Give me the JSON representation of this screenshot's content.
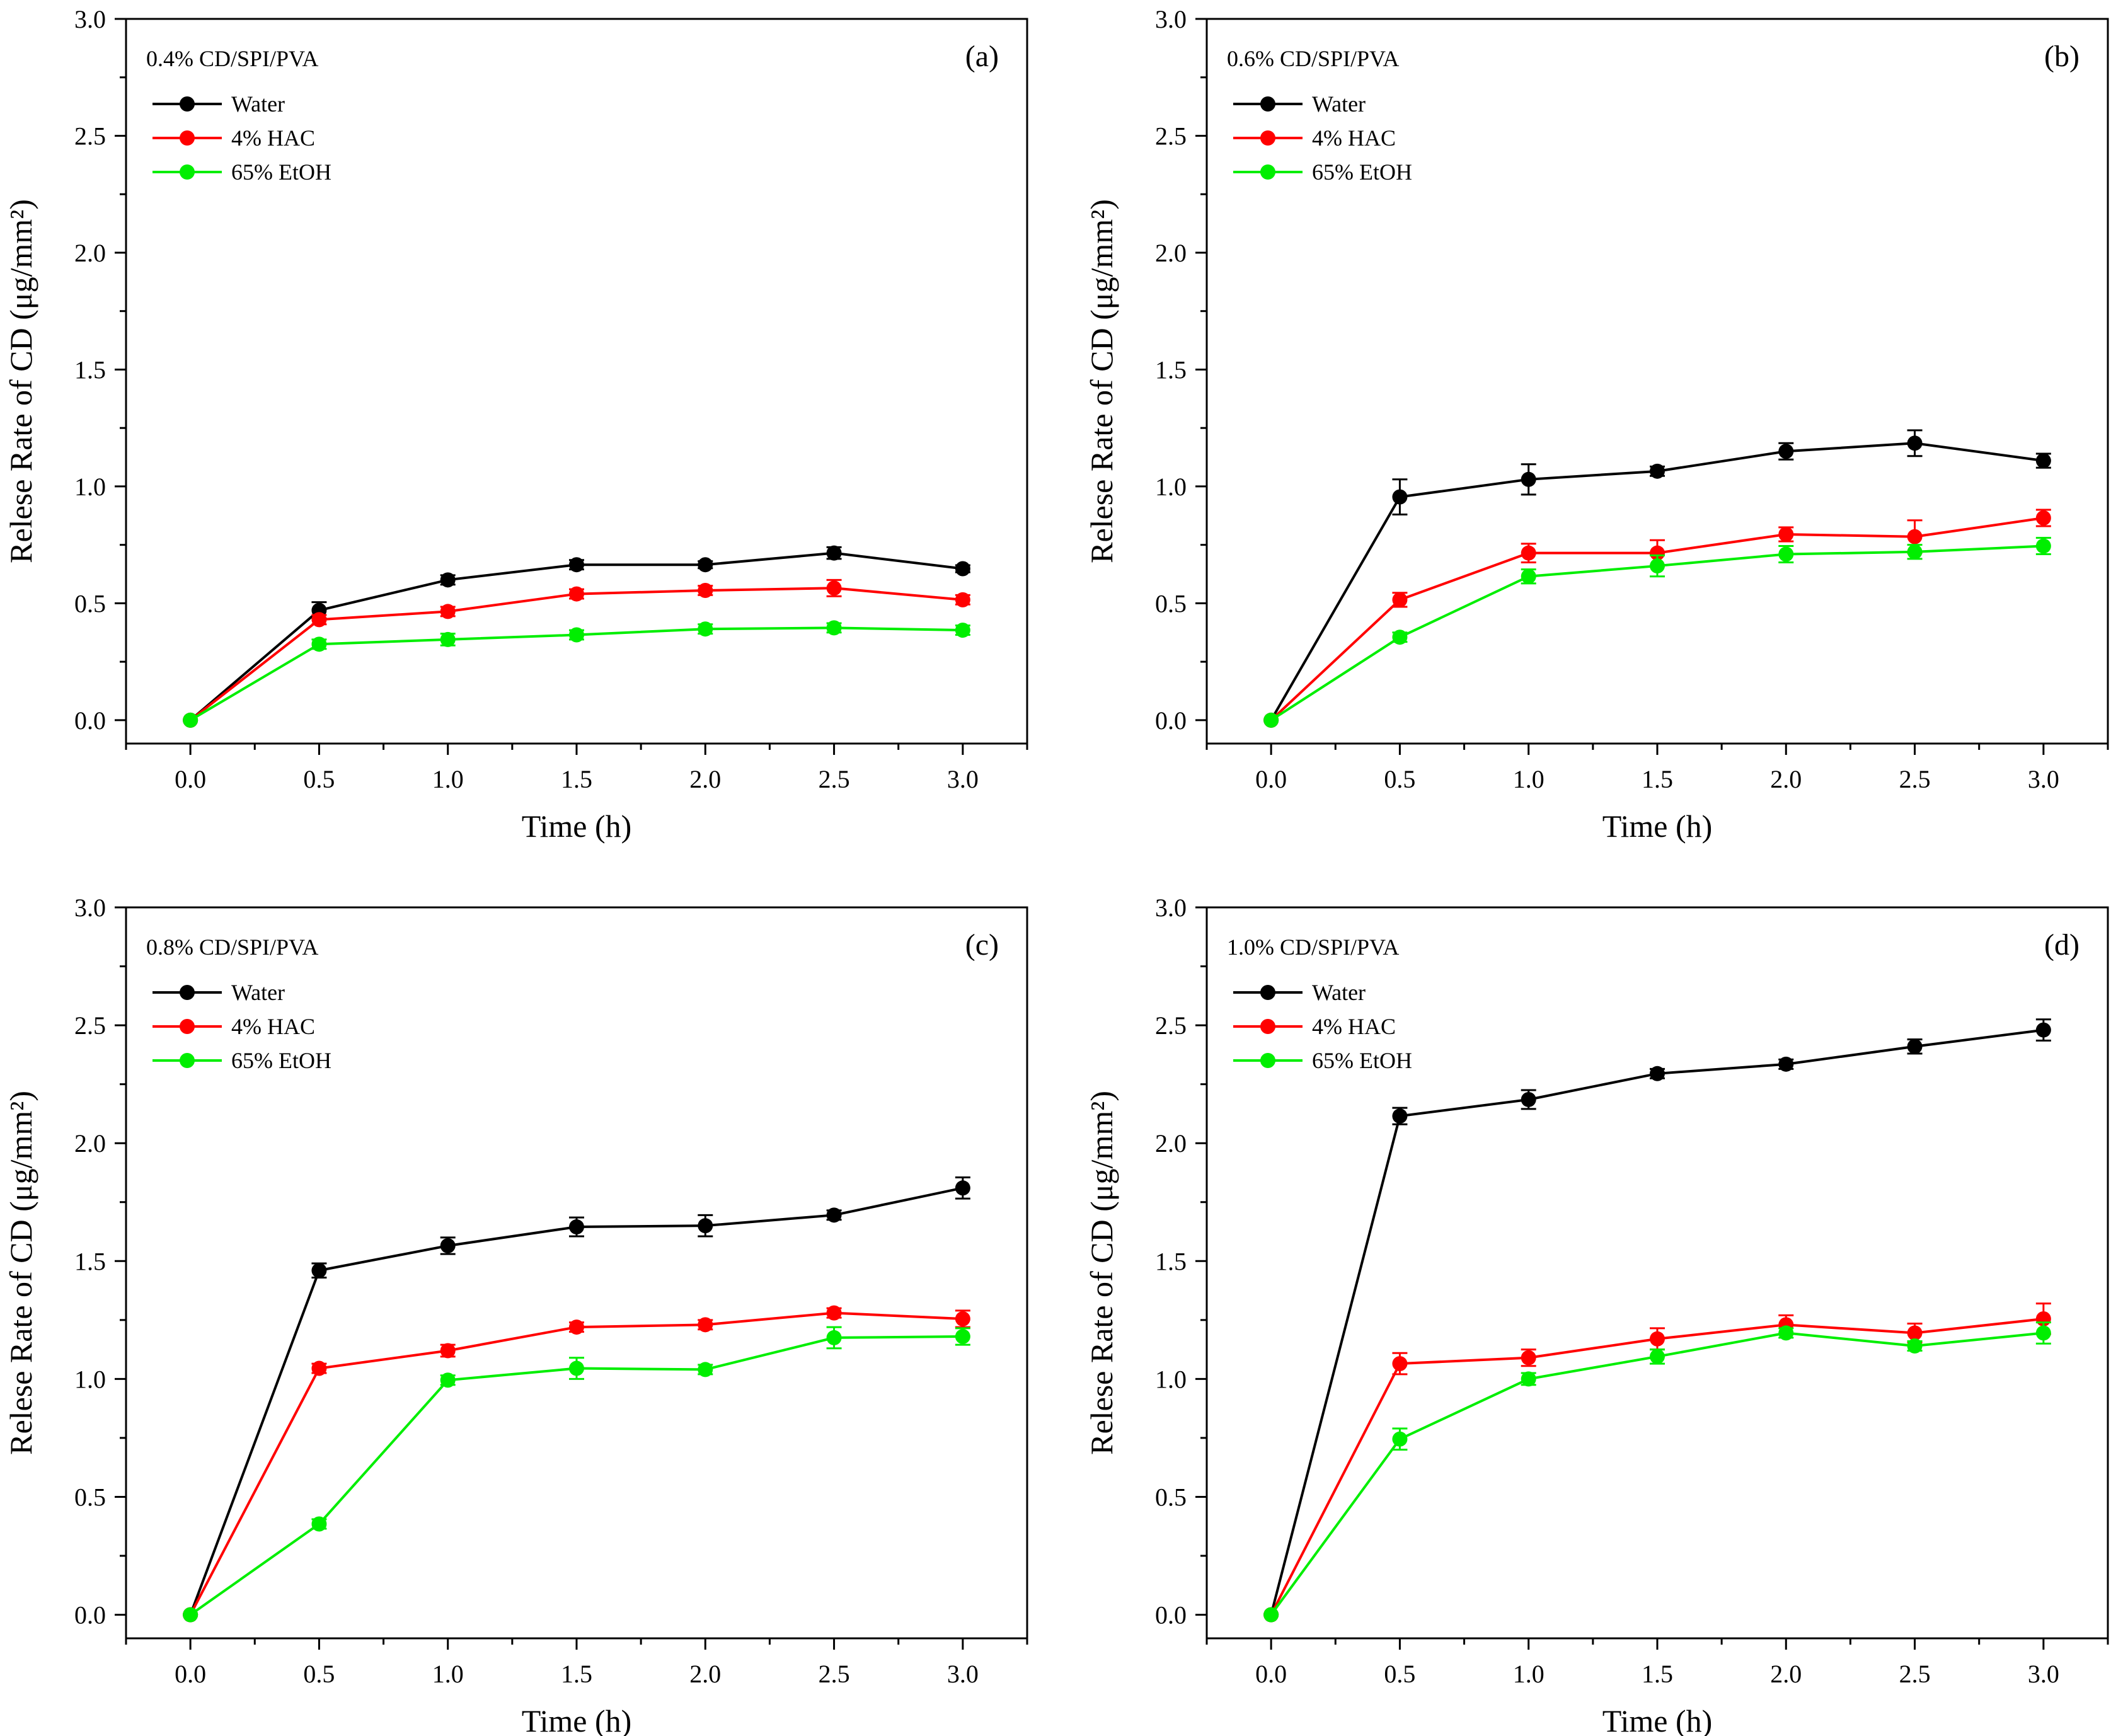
{
  "chart_data": [
    {
      "type": "line",
      "panel_label": "(a)",
      "title": "0.4% CD/SPI/PVA",
      "xlabel": "Time (h)",
      "ylabel": "Relese Rate of CD (μg/mm²)",
      "xlim": [
        -0.25,
        3.25
      ],
      "ylim": [
        -0.1,
        3.0
      ],
      "x_ticks": [
        "0.0",
        "0.5",
        "1.0",
        "1.5",
        "2.0",
        "2.5",
        "3.0"
      ],
      "y_ticks": [
        "0.0",
        "0.5",
        "1.0",
        "1.5",
        "2.0",
        "2.5",
        "3.0"
      ],
      "x": [
        0.0,
        0.5,
        1.0,
        1.5,
        2.0,
        2.5,
        3.0
      ],
      "series": [
        {
          "name": "Water",
          "color": "#000000",
          "values": [
            0.0,
            0.47,
            0.6,
            0.665,
            0.665,
            0.715,
            0.648
          ],
          "errors": [
            0.0,
            0.035,
            0.02,
            0.02,
            0.015,
            0.025,
            0.015
          ]
        },
        {
          "name": "4% HAC",
          "color": "#ff0000",
          "values": [
            0.0,
            0.43,
            0.465,
            0.54,
            0.555,
            0.565,
            0.515
          ],
          "errors": [
            0.0,
            0.02,
            0.02,
            0.02,
            0.02,
            0.035,
            0.02
          ]
        },
        {
          "name": "65% EtOH",
          "color": "#00ee00",
          "values": [
            0.0,
            0.325,
            0.345,
            0.365,
            0.39,
            0.395,
            0.385
          ],
          "errors": [
            0.0,
            0.02,
            0.025,
            0.02,
            0.02,
            0.02,
            0.02
          ]
        }
      ]
    },
    {
      "type": "line",
      "panel_label": "(b)",
      "title": "0.6% CD/SPI/PVA",
      "xlabel": "Time (h)",
      "ylabel": "Relese Rate of CD (μg/mm²)",
      "xlim": [
        -0.25,
        3.25
      ],
      "ylim": [
        -0.1,
        3.0
      ],
      "x_ticks": [
        "0.0",
        "0.5",
        "1.0",
        "1.5",
        "2.0",
        "2.5",
        "3.0"
      ],
      "y_ticks": [
        "0.0",
        "0.5",
        "1.0",
        "1.5",
        "2.0",
        "2.5",
        "3.0"
      ],
      "x": [
        0.0,
        0.5,
        1.0,
        1.5,
        2.0,
        2.5,
        3.0
      ],
      "series": [
        {
          "name": "Water",
          "color": "#000000",
          "values": [
            0.0,
            0.955,
            1.03,
            1.065,
            1.15,
            1.185,
            1.11
          ],
          "errors": [
            0.0,
            0.075,
            0.065,
            0.02,
            0.035,
            0.055,
            0.03
          ]
        },
        {
          "name": "4% HAC",
          "color": "#ff0000",
          "values": [
            0.0,
            0.515,
            0.715,
            0.715,
            0.795,
            0.785,
            0.865
          ],
          "errors": [
            0.0,
            0.03,
            0.04,
            0.055,
            0.03,
            0.07,
            0.035
          ]
        },
        {
          "name": "65% EtOH",
          "color": "#00ee00",
          "values": [
            0.0,
            0.355,
            0.615,
            0.66,
            0.71,
            0.72,
            0.745
          ],
          "errors": [
            0.0,
            0.02,
            0.03,
            0.045,
            0.035,
            0.03,
            0.035
          ]
        }
      ]
    },
    {
      "type": "line",
      "panel_label": "(c)",
      "title": "0.8% CD/SPI/PVA",
      "xlabel": "Time (h)",
      "ylabel": "Relese Rate of CD (μg/mm²)",
      "xlim": [
        -0.25,
        3.25
      ],
      "ylim": [
        -0.1,
        3.0
      ],
      "x_ticks": [
        "0.0",
        "0.5",
        "1.0",
        "1.5",
        "2.0",
        "2.5",
        "3.0"
      ],
      "y_ticks": [
        "0.0",
        "0.5",
        "1.0",
        "1.5",
        "2.0",
        "2.5",
        "3.0"
      ],
      "x": [
        0.0,
        0.5,
        1.0,
        1.5,
        2.0,
        2.5,
        3.0
      ],
      "series": [
        {
          "name": "Water",
          "color": "#000000",
          "values": [
            0.0,
            1.46,
            1.565,
            1.645,
            1.65,
            1.695,
            1.81
          ],
          "errors": [
            0.0,
            0.03,
            0.035,
            0.04,
            0.045,
            0.02,
            0.045
          ]
        },
        {
          "name": "4% HAC",
          "color": "#ff0000",
          "values": [
            0.0,
            1.045,
            1.12,
            1.22,
            1.23,
            1.28,
            1.255
          ],
          "errors": [
            0.0,
            0.02,
            0.025,
            0.02,
            0.02,
            0.02,
            0.035
          ]
        },
        {
          "name": "65% EtOH",
          "color": "#00ee00",
          "values": [
            0.0,
            0.385,
            0.995,
            1.045,
            1.04,
            1.175,
            1.18
          ],
          "errors": [
            0.0,
            0.02,
            0.02,
            0.045,
            0.02,
            0.045,
            0.035
          ]
        }
      ]
    },
    {
      "type": "line",
      "panel_label": "(d)",
      "title": "1.0% CD/SPI/PVA",
      "xlabel": "Time (h)",
      "ylabel": "Relese Rate of CD (μg/mm²)",
      "xlim": [
        -0.25,
        3.25
      ],
      "ylim": [
        -0.1,
        3.0
      ],
      "x_ticks": [
        "0.0",
        "0.5",
        "1.0",
        "1.5",
        "2.0",
        "2.5",
        "3.0"
      ],
      "y_ticks": [
        "0.0",
        "0.5",
        "1.0",
        "1.5",
        "2.0",
        "2.5",
        "3.0"
      ],
      "x": [
        0.0,
        0.5,
        1.0,
        1.5,
        2.0,
        2.5,
        3.0
      ],
      "series": [
        {
          "name": "Water",
          "color": "#000000",
          "values": [
            0.0,
            2.115,
            2.185,
            2.295,
            2.335,
            2.41,
            2.48
          ],
          "errors": [
            0.0,
            0.035,
            0.04,
            0.02,
            0.02,
            0.03,
            0.045
          ]
        },
        {
          "name": "4% HAC",
          "color": "#ff0000",
          "values": [
            0.0,
            1.065,
            1.09,
            1.17,
            1.23,
            1.195,
            1.255
          ],
          "errors": [
            0.0,
            0.045,
            0.035,
            0.045,
            0.04,
            0.04,
            0.065
          ]
        },
        {
          "name": "65% EtOH",
          "color": "#00ee00",
          "values": [
            0.0,
            0.745,
            1.0,
            1.095,
            1.195,
            1.14,
            1.195
          ],
          "errors": [
            0.0,
            0.045,
            0.025,
            0.03,
            0.02,
            0.02,
            0.045
          ]
        }
      ]
    }
  ]
}
